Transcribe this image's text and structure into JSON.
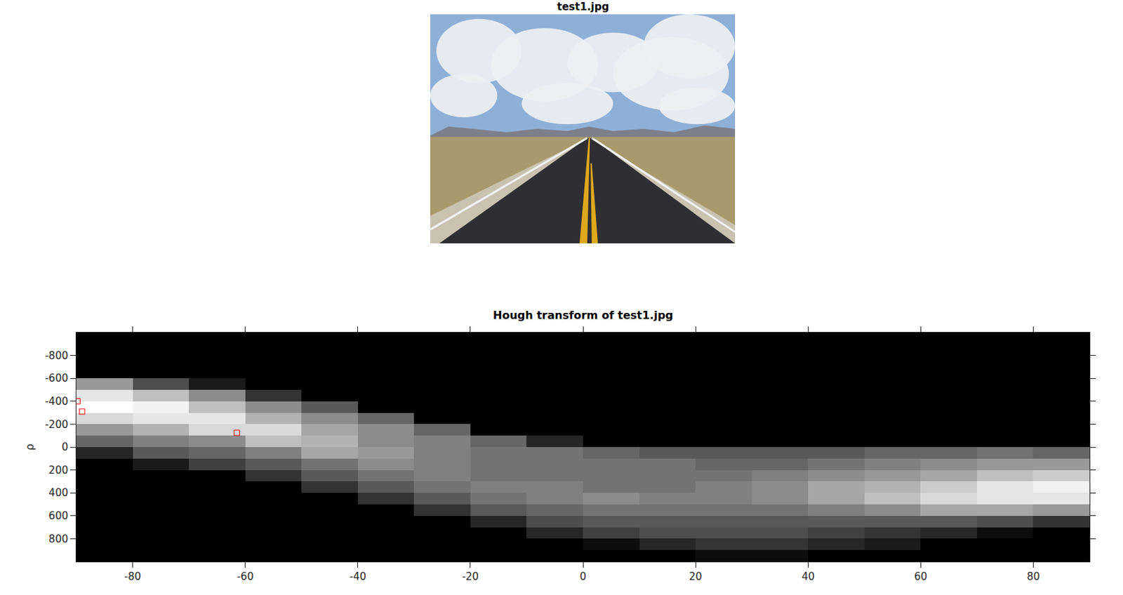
{
  "chart_data": [
    {
      "type": "image",
      "title": "test1.jpg"
    },
    {
      "type": "heatmap",
      "title": "Hough transform of test1.jpg",
      "y_label": "ρ",
      "color": "gray",
      "x": [
        -85,
        -75,
        -65,
        -55,
        -45,
        -35,
        -25,
        -15,
        -5,
        5,
        15,
        25,
        35,
        45,
        55,
        65,
        75,
        85
      ],
      "y": [
        -950,
        -850,
        -750,
        -650,
        -550,
        -450,
        -350,
        -250,
        -150,
        -50,
        50,
        150,
        250,
        350,
        450,
        550,
        650,
        750,
        850,
        950
      ],
      "cells": [
        [
          0,
          0,
          0,
          0,
          0,
          0,
          0,
          0,
          0,
          0,
          0,
          0,
          0,
          0,
          0,
          0,
          0,
          0
        ],
        [
          0,
          0,
          0,
          0,
          0,
          0,
          0,
          0,
          0,
          0,
          0,
          0,
          0,
          0,
          0,
          0,
          0,
          0
        ],
        [
          0,
          0,
          0,
          0,
          0,
          0,
          0,
          0,
          0,
          0,
          0,
          0,
          0,
          0,
          0,
          0,
          0,
          0
        ],
        [
          0,
          0,
          0,
          0,
          0,
          0,
          0,
          0,
          0,
          0,
          0,
          0,
          0,
          0,
          0,
          0,
          0,
          0
        ],
        [
          60,
          30,
          10,
          0,
          0,
          0,
          0,
          0,
          0,
          0,
          0,
          0,
          0,
          0,
          0,
          0,
          0,
          0
        ],
        [
          90,
          75,
          55,
          20,
          0,
          0,
          0,
          0,
          0,
          0,
          0,
          0,
          0,
          0,
          0,
          0,
          0,
          0
        ],
        [
          100,
          95,
          75,
          55,
          35,
          0,
          0,
          0,
          0,
          0,
          0,
          0,
          0,
          0,
          0,
          0,
          0,
          0
        ],
        [
          85,
          90,
          90,
          70,
          55,
          40,
          0,
          0,
          0,
          0,
          0,
          0,
          0,
          0,
          0,
          0,
          0,
          0
        ],
        [
          60,
          70,
          85,
          85,
          65,
          55,
          40,
          0,
          0,
          0,
          0,
          0,
          0,
          0,
          0,
          0,
          0,
          0
        ],
        [
          40,
          50,
          55,
          75,
          70,
          55,
          50,
          40,
          15,
          0,
          0,
          0,
          0,
          0,
          0,
          0,
          0,
          0
        ],
        [
          15,
          35,
          40,
          50,
          65,
          60,
          50,
          45,
          45,
          40,
          35,
          35,
          35,
          35,
          40,
          40,
          45,
          40
        ],
        [
          0,
          10,
          25,
          35,
          45,
          55,
          50,
          45,
          45,
          45,
          45,
          40,
          40,
          45,
          50,
          55,
          60,
          60
        ],
        [
          0,
          0,
          0,
          20,
          35,
          45,
          50,
          45,
          45,
          45,
          45,
          45,
          50,
          55,
          60,
          65,
          75,
          80
        ],
        [
          0,
          0,
          0,
          0,
          20,
          35,
          45,
          50,
          50,
          45,
          45,
          50,
          55,
          65,
          70,
          80,
          90,
          95
        ],
        [
          0,
          0,
          0,
          0,
          0,
          20,
          35,
          45,
          50,
          55,
          50,
          50,
          55,
          65,
          75,
          85,
          90,
          90
        ],
        [
          0,
          0,
          0,
          0,
          0,
          0,
          20,
          35,
          40,
          45,
          45,
          45,
          45,
          50,
          55,
          65,
          65,
          60
        ],
        [
          0,
          0,
          0,
          0,
          0,
          0,
          0,
          15,
          30,
          35,
          35,
          35,
          35,
          35,
          35,
          35,
          30,
          20
        ],
        [
          0,
          0,
          0,
          0,
          0,
          0,
          0,
          0,
          15,
          25,
          30,
          30,
          30,
          25,
          20,
          15,
          5,
          0
        ],
        [
          0,
          0,
          0,
          0,
          0,
          0,
          0,
          0,
          0,
          5,
          15,
          20,
          20,
          15,
          10,
          0,
          0,
          0
        ],
        [
          0,
          0,
          0,
          0,
          0,
          0,
          0,
          0,
          0,
          0,
          0,
          5,
          5,
          0,
          0,
          0,
          0,
          0
        ]
      ],
      "zlim": [
        0,
        100
      ],
      "xlim": [
        -90,
        90
      ],
      "xticks": [
        -80,
        -60,
        -40,
        -20,
        0,
        20,
        40,
        60,
        80
      ],
      "ylim": [
        -1000,
        1000
      ],
      "yticks": [
        -800,
        -600,
        -400,
        -200,
        0,
        200,
        400,
        600,
        800
      ],
      "series": [
        {
          "type": "scatter",
          "marker": "square-open",
          "color": "#ff0000",
          "x": [
            -89.8,
            -89,
            -61.5
          ],
          "y": [
            -400,
            -310,
            -125
          ]
        }
      ]
    }
  ]
}
